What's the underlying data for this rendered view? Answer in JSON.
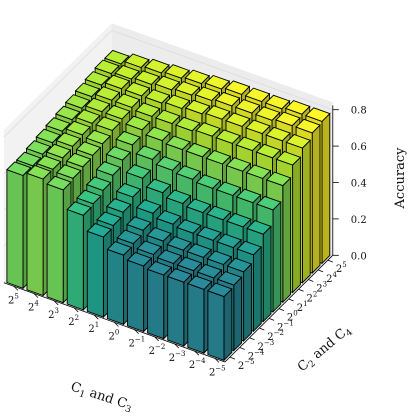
{
  "chart_data": {
    "type": "bar3d",
    "xlabel_parts": [
      "C",
      "1",
      " and C",
      "3"
    ],
    "ylabel_parts": [
      "C",
      "2",
      " and C",
      "4"
    ],
    "zlabel": "Accuracy",
    "zlim": [
      0,
      0.8
    ],
    "x_ticks": [
      {
        "base": "2",
        "exp": "−5"
      },
      {
        "base": "2",
        "exp": "−4"
      },
      {
        "base": "2",
        "exp": "−3"
      },
      {
        "base": "2",
        "exp": "−2"
      },
      {
        "base": "2",
        "exp": "−1"
      },
      {
        "base": "2",
        "exp": "0"
      },
      {
        "base": "2",
        "exp": "1"
      },
      {
        "base": "2",
        "exp": "2"
      },
      {
        "base": "2",
        "exp": "3"
      },
      {
        "base": "2",
        "exp": "4"
      },
      {
        "base": "2",
        "exp": "5"
      }
    ],
    "y_ticks": [
      {
        "base": "2",
        "exp": "−5"
      },
      {
        "base": "2",
        "exp": "−4"
      },
      {
        "base": "2",
        "exp": "−3"
      },
      {
        "base": "2",
        "exp": "−2"
      },
      {
        "base": "2",
        "exp": "−1"
      },
      {
        "base": "2",
        "exp": "0"
      },
      {
        "base": "2",
        "exp": "1"
      },
      {
        "base": "2",
        "exp": "2"
      },
      {
        "base": "2",
        "exp": "3"
      },
      {
        "base": "2",
        "exp": "4"
      },
      {
        "base": "2",
        "exp": "5"
      }
    ],
    "z_ticks": [
      "0.0",
      "0.2",
      "0.4",
      "0.6",
      "0.8"
    ],
    "z_tick_values": [
      0,
      0.2,
      0.4,
      0.6,
      0.8
    ],
    "values": [
      [
        0.62,
        0.62,
        0.63,
        0.64,
        0.65,
        0.66,
        0.67,
        0.68,
        0.69,
        0.7,
        0.7
      ],
      [
        0.64,
        0.64,
        0.65,
        0.66,
        0.67,
        0.68,
        0.69,
        0.7,
        0.71,
        0.71,
        0.72
      ],
      [
        0.62,
        0.63,
        0.64,
        0.65,
        0.66,
        0.68,
        0.69,
        0.7,
        0.71,
        0.72,
        0.73
      ],
      [
        0.52,
        0.53,
        0.55,
        0.58,
        0.61,
        0.64,
        0.67,
        0.69,
        0.71,
        0.73,
        0.74
      ],
      [
        0.44,
        0.45,
        0.47,
        0.5,
        0.55,
        0.6,
        0.65,
        0.69,
        0.72,
        0.74,
        0.75
      ],
      [
        0.38,
        0.39,
        0.41,
        0.45,
        0.51,
        0.58,
        0.64,
        0.69,
        0.73,
        0.75,
        0.76
      ],
      [
        0.36,
        0.37,
        0.39,
        0.43,
        0.49,
        0.57,
        0.64,
        0.7,
        0.74,
        0.76,
        0.77
      ],
      [
        0.35,
        0.36,
        0.38,
        0.42,
        0.48,
        0.56,
        0.64,
        0.7,
        0.74,
        0.76,
        0.77
      ],
      [
        0.35,
        0.36,
        0.38,
        0.42,
        0.48,
        0.56,
        0.64,
        0.7,
        0.74,
        0.76,
        0.77
      ],
      [
        0.35,
        0.36,
        0.38,
        0.42,
        0.48,
        0.56,
        0.64,
        0.7,
        0.74,
        0.77,
        0.78
      ],
      [
        0.35,
        0.36,
        0.38,
        0.42,
        0.48,
        0.56,
        0.64,
        0.7,
        0.74,
        0.77,
        0.78
      ]
    ],
    "colormap": "viridis",
    "grid": true,
    "pane_color": "#f2f2f2",
    "grid_color": "#dcdcdc",
    "edge_color": "#000000"
  }
}
